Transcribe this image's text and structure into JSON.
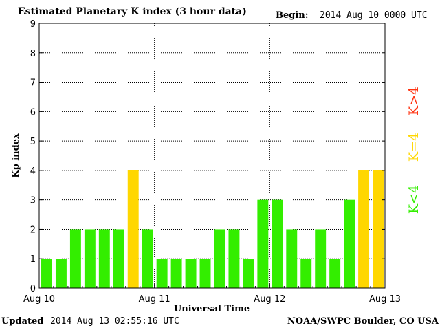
{
  "header": {
    "title": "Estimated Planetary K index (3 hour data)",
    "begin_label": "Begin:",
    "begin_value": "2014 Aug 10 0000 UTC"
  },
  "footer": {
    "updated_label": "Updated",
    "updated_value": "2014 Aug 13 02:55:16 UTC",
    "credit": "NOAA/SWPC Boulder, CO USA"
  },
  "legend": {
    "below": {
      "text": "K<4",
      "color": "#33ee00"
    },
    "equal": {
      "text": "K=4",
      "color": "#ffd700"
    },
    "above": {
      "text": "K>4",
      "color": "#ff3311"
    }
  },
  "chart_data": {
    "type": "bar",
    "title": "Estimated Planetary K index (3 hour data)",
    "xlabel": "Universal Time",
    "ylabel": "Kp index",
    "ylim": [
      0,
      9
    ],
    "yticks": [
      0,
      1,
      2,
      3,
      4,
      5,
      6,
      7,
      8,
      9
    ],
    "xticks": [
      "Aug 10",
      "Aug 11",
      "Aug 12",
      "Aug 13"
    ],
    "grid": true,
    "values": [
      1,
      1,
      2,
      2,
      2,
      2,
      4,
      2,
      1,
      1,
      1,
      1,
      2,
      2,
      1,
      3,
      3,
      2,
      1,
      2,
      1,
      3,
      4,
      4
    ],
    "colors": {
      "below": "#33ee00",
      "equal": "#ffd700",
      "above": "#ff3311"
    }
  }
}
